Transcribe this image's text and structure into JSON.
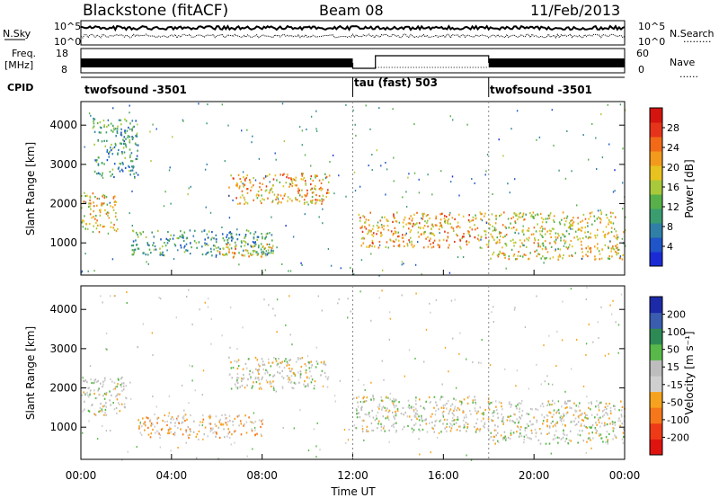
{
  "header": {
    "radar": "Blackstone (fitACF)",
    "beam": "Beam 08",
    "date": "11/Feb/2013"
  },
  "strip_labels": {
    "nsky": "N.Sky",
    "nsearch": "N.Search",
    "nsearch_dots": ".........",
    "freq_line1": "Freq.",
    "freq_line2": "[MHz]",
    "nave": "Nave",
    "nave_dots": "......",
    "cpid": "CPID"
  },
  "noise_axis": {
    "left_ticks": [
      "10^5",
      "10^0"
    ],
    "right_ticks": [
      "10^5",
      "10^0"
    ]
  },
  "freq_axis": {
    "left_ticks": [
      "18",
      "8"
    ],
    "right_ticks": [
      "60",
      "0"
    ]
  },
  "cpid_segments": [
    {
      "name": "twofsound -3501",
      "start_hour": 0,
      "end_hour": 12
    },
    {
      "name": "tau (fast) 503",
      "start_hour": 12,
      "end_hour": 18
    },
    {
      "name": "twofsound -3501",
      "start_hour": 18,
      "end_hour": 24
    }
  ],
  "chart_data": [
    {
      "type": "heatmap",
      "name": "power",
      "ylabel": "Slant Range [km]",
      "ylim": [
        180,
        4600
      ],
      "yticks": [
        "1000",
        "2000",
        "3000",
        "4000"
      ],
      "colorbar": {
        "label": "Power [dB]",
        "ticks": [
          "28",
          "24",
          "20",
          "16",
          "12",
          "8",
          "4"
        ],
        "range": [
          0,
          30
        ]
      },
      "regions": [
        {
          "t0": 0.0,
          "t1": 1.6,
          "r0": 1300,
          "r1": 2300,
          "v": 18
        },
        {
          "t0": 0.5,
          "t1": 2.5,
          "r0": 2700,
          "r1": 4200,
          "v": 9
        },
        {
          "t0": 2.2,
          "t1": 8.5,
          "r0": 700,
          "r1": 1350,
          "v": 9
        },
        {
          "t0": 6.0,
          "t1": 8.5,
          "r0": 650,
          "r1": 1000,
          "v": 19
        },
        {
          "t0": 6.5,
          "t1": 11.0,
          "r0": 2000,
          "r1": 2800,
          "v": 20
        },
        {
          "t0": 12.2,
          "t1": 18.0,
          "r0": 900,
          "r1": 1800,
          "v": 20
        },
        {
          "t0": 18.0,
          "t1": 24.0,
          "r0": 600,
          "r1": 1800,
          "v": 17
        }
      ]
    },
    {
      "type": "heatmap",
      "name": "velocity",
      "xlabel": "Time UT",
      "ylabel": "Slant Range [km]",
      "ylim": [
        180,
        4600
      ],
      "xlim": [
        0,
        24
      ],
      "xticks": [
        "00:00",
        "04:00",
        "08:00",
        "12:00",
        "16:00",
        "20:00",
        "00:00"
      ],
      "yticks": [
        "1000",
        "2000",
        "3000",
        "4000"
      ],
      "colorbar": {
        "label": "Velocity [m s⁻¹]",
        "ticks": [
          "200",
          "100",
          "50",
          "15",
          "-15",
          "-50",
          "-100",
          "-200"
        ],
        "range": [
          -250,
          250
        ]
      },
      "regions": [
        {
          "t0": 0.0,
          "t1": 2.0,
          "r0": 1300,
          "r1": 2300,
          "v": 0
        },
        {
          "t0": 2.5,
          "t1": 8.0,
          "r0": 750,
          "r1": 1350,
          "v": -60
        },
        {
          "t0": 6.5,
          "t1": 11.0,
          "r0": 2000,
          "r1": 2800,
          "v": 0
        },
        {
          "t0": 12.0,
          "t1": 18.0,
          "r0": 900,
          "r1": 1800,
          "v": 0
        },
        {
          "t0": 18.0,
          "t1": 24.0,
          "r0": 600,
          "r1": 1700,
          "v": 0
        }
      ]
    }
  ]
}
